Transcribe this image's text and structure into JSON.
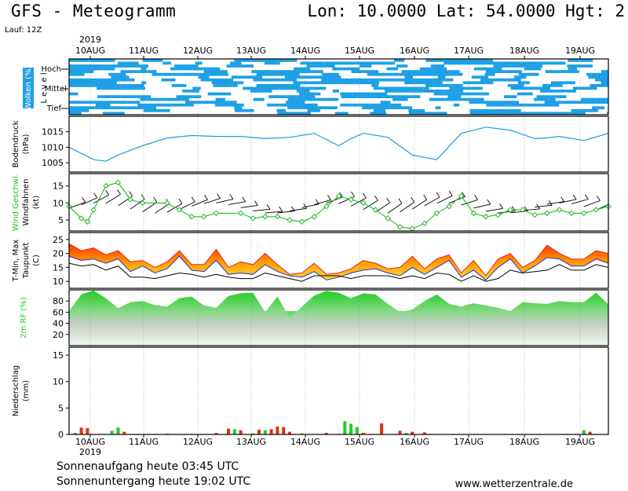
{
  "header": {
    "title": "GFS - Meteogramm",
    "coords": "Lon: 10.0000 Lat: 54.0000 Hgt: 2",
    "run": "Lauf: 12Z"
  },
  "footer": {
    "sunrise": "Sonnenaufgang heute 03:45 UTC",
    "sunset": "Sonnenuntergang heute 19:02 UTC",
    "credit": "www.wetterzentrale.de"
  },
  "colors": {
    "cloud": "#1ea0e6",
    "pressure": "#1e9cd8",
    "wind": "#22bb22",
    "tmax": "#ee2222",
    "tmin": "#2233cc",
    "dew": "#000000",
    "rh": "#22cc22",
    "precip_rain": "#dd3311",
    "precip_conv": "#22cc22"
  },
  "chart_data": {
    "type": "meteogram",
    "year": "2019",
    "dates": [
      "10AUG",
      "11AUG",
      "12AUG",
      "13AUG",
      "14AUG",
      "15AUG",
      "16AUG",
      "17AUG",
      "18AUG",
      "19AUG"
    ],
    "time_unit": "hours since 10AUG 00Z",
    "panels": [
      {
        "id": "clouds",
        "ylabel": [
          "Wolken (%)",
          "L e v e l"
        ],
        "levels": [
          "Hoch",
          "Mittel",
          "Tief"
        ]
      },
      {
        "id": "pressure",
        "ylabel": [
          "Bodendruck",
          "(hPa)"
        ],
        "yticks": [
          1005,
          1010,
          1015
        ],
        "ylim": [
          1002,
          1020
        ],
        "x": [
          0,
          12,
          18,
          24,
          36,
          48,
          60,
          72,
          84,
          96,
          108,
          120,
          132,
          138,
          144,
          156,
          168,
          180,
          192,
          204,
          216,
          228,
          234,
          240,
          252,
          264
        ],
        "y": [
          1010,
          1006,
          1005.5,
          1007.5,
          1010.5,
          1013,
          1013.8,
          1013.5,
          1013.5,
          1012.8,
          1013.2,
          1014.5,
          1010.5,
          1012.8,
          1014.5,
          1013.2,
          1007.5,
          1006,
          1014.5,
          1016.5,
          1015.5,
          1012.8,
          1013,
          1013.5,
          1012.2,
          1014.5
        ]
      },
      {
        "id": "wind",
        "ylabel": [
          "Wind Geschwi.",
          "Windfahnen",
          "(kt)"
        ],
        "yticks": [
          5,
          10,
          15
        ],
        "ylim": [
          1.8,
          18.6
        ],
        "x": [
          0,
          6,
          9,
          12,
          18,
          24,
          30,
          36,
          48,
          54,
          60,
          66,
          72,
          84,
          90,
          96,
          102,
          108,
          114,
          120,
          126,
          132,
          138,
          144,
          150,
          156,
          162,
          168,
          174,
          180,
          186,
          192,
          198,
          204,
          210,
          216,
          222,
          228,
          234,
          240,
          246,
          252,
          258,
          264
        ],
        "y": [
          9,
          5.5,
          4.5,
          8,
          15,
          16,
          11,
          10,
          10,
          8,
          6,
          6,
          7,
          7,
          5.5,
          6,
          6,
          5,
          4.5,
          6,
          9,
          12,
          11,
          10,
          8,
          5.5,
          3,
          2.5,
          4,
          7,
          9,
          12,
          7,
          6,
          6.5,
          8,
          8,
          6.5,
          7,
          8,
          7,
          7,
          8,
          9
        ]
      },
      {
        "id": "temperature",
        "ylabel": [
          "T-Min, Max",
          "Taupunkt",
          "(C)"
        ],
        "yticks": [
          10,
          15,
          20,
          25
        ],
        "ylim": [
          7.5,
          27.5
        ],
        "x": [
          0,
          6,
          12,
          18,
          24,
          30,
          36,
          42,
          48,
          54,
          60,
          66,
          72,
          78,
          84,
          90,
          96,
          102,
          108,
          114,
          120,
          126,
          132,
          138,
          144,
          150,
          156,
          162,
          168,
          174,
          180,
          186,
          192,
          198,
          204,
          210,
          216,
          222,
          228,
          234,
          240,
          246,
          252,
          258,
          264
        ],
        "tmax": [
          23.5,
          21,
          22,
          19.5,
          21,
          17,
          17.5,
          15,
          17,
          21,
          16,
          16,
          21.5,
          15,
          17,
          16,
          20,
          16,
          12.5,
          13,
          16.5,
          12.5,
          13,
          14.5,
          17.5,
          16.5,
          14.5,
          15,
          19,
          14.5,
          18,
          19.5,
          13,
          17.5,
          12,
          18,
          20,
          15,
          17.5,
          23,
          20,
          18,
          18,
          21,
          20
        ],
        "tmin": [
          19,
          17.5,
          18,
          16.5,
          18,
          13.5,
          15.5,
          13,
          14.5,
          19,
          14,
          13.5,
          17.5,
          12.5,
          13,
          12.5,
          16,
          13.5,
          12,
          11.5,
          13.5,
          10.5,
          11.5,
          13,
          14,
          14.5,
          13,
          12,
          15,
          12.5,
          15,
          17.5,
          11.5,
          14,
          10.5,
          15,
          18,
          13,
          15.5,
          18.5,
          18,
          15.5,
          15.5,
          18,
          16.5
        ],
        "dew": [
          16.5,
          15.5,
          16,
          14,
          15.5,
          11.5,
          11.5,
          11,
          12,
          13,
          12.5,
          11.5,
          12.5,
          11.5,
          11,
          11,
          13,
          12,
          11,
          10,
          12,
          12,
          12,
          11,
          12,
          12,
          12,
          11,
          12,
          11,
          13,
          12.5,
          10,
          12,
          10,
          11,
          14,
          13,
          13.5,
          14,
          16,
          14,
          14,
          16,
          15
        ]
      },
      {
        "id": "humidity",
        "ylabel": [
          "2m RF (%)"
        ],
        "yticks": [
          20,
          40,
          60,
          80
        ],
        "ylim": [
          0,
          100
        ],
        "x": [
          0,
          6,
          12,
          18,
          24,
          30,
          36,
          42,
          48,
          54,
          60,
          66,
          72,
          78,
          84,
          90,
          96,
          102,
          108,
          114,
          120,
          126,
          132,
          138,
          144,
          150,
          156,
          162,
          168,
          174,
          180,
          186,
          192,
          198,
          204,
          210,
          216,
          222,
          228,
          234,
          240,
          246,
          252,
          258,
          264
        ],
        "y": [
          62,
          92,
          99,
          85,
          67,
          78,
          80,
          73,
          70,
          85,
          88,
          72,
          68,
          89,
          94,
          95,
          60,
          88,
          50,
          70,
          90,
          98,
          95,
          85,
          94,
          92,
          75,
          60,
          65,
          80,
          92,
          75,
          70,
          76,
          72,
          68,
          62,
          78,
          76,
          75,
          80,
          78,
          78,
          95,
          74
        ]
      },
      {
        "id": "precipitation",
        "ylabel": [
          "Niederschlag",
          "(mm)"
        ],
        "yticks": [
          0,
          5,
          10,
          15
        ],
        "ylim": [
          0,
          16.5
        ],
        "bars": [
          {
            "x": 3,
            "v": 0.3,
            "t": "c"
          },
          {
            "x": 6,
            "v": 1.3,
            "t": "r"
          },
          {
            "x": 9,
            "v": 1.2,
            "t": "r"
          },
          {
            "x": 21,
            "v": 0.7,
            "t": "c"
          },
          {
            "x": 24,
            "v": 1.3,
            "t": "c"
          },
          {
            "x": 27,
            "v": 0.5,
            "t": "r"
          },
          {
            "x": 42,
            "v": 0.1,
            "t": "c"
          },
          {
            "x": 48,
            "v": 0.15,
            "t": "r"
          },
          {
            "x": 60,
            "v": 0.1,
            "t": "c"
          },
          {
            "x": 72,
            "v": 0.3,
            "t": "r"
          },
          {
            "x": 78,
            "v": 1.1,
            "t": "r"
          },
          {
            "x": 81,
            "v": 1.0,
            "t": "c"
          },
          {
            "x": 84,
            "v": 0.8,
            "t": "r"
          },
          {
            "x": 90,
            "v": 0.2,
            "t": "c"
          },
          {
            "x": 93,
            "v": 0.9,
            "t": "r"
          },
          {
            "x": 96,
            "v": 0.8,
            "t": "c"
          },
          {
            "x": 99,
            "v": 1.0,
            "t": "r"
          },
          {
            "x": 102,
            "v": 1.5,
            "t": "r"
          },
          {
            "x": 105,
            "v": 1.4,
            "t": "r"
          },
          {
            "x": 108,
            "v": 0.5,
            "t": "r"
          },
          {
            "x": 114,
            "v": 0.2,
            "t": "c"
          },
          {
            "x": 126,
            "v": 0.3,
            "t": "r"
          },
          {
            "x": 132,
            "v": 0.1,
            "t": "c"
          },
          {
            "x": 135,
            "v": 2.5,
            "t": "c"
          },
          {
            "x": 138,
            "v": 2.0,
            "t": "c"
          },
          {
            "x": 141,
            "v": 1.4,
            "t": "c"
          },
          {
            "x": 144,
            "v": 0.3,
            "t": "r"
          },
          {
            "x": 153,
            "v": 2.1,
            "t": "r"
          },
          {
            "x": 162,
            "v": 0.7,
            "t": "r"
          },
          {
            "x": 165,
            "v": 0.3,
            "t": "c"
          },
          {
            "x": 168,
            "v": 0.5,
            "t": "r"
          },
          {
            "x": 174,
            "v": 0.4,
            "t": "r"
          },
          {
            "x": 177,
            "v": 0.1,
            "t": "c"
          },
          {
            "x": 252,
            "v": 0.8,
            "t": "c"
          },
          {
            "x": 255,
            "v": 0.5,
            "t": "r"
          }
        ]
      }
    ]
  }
}
